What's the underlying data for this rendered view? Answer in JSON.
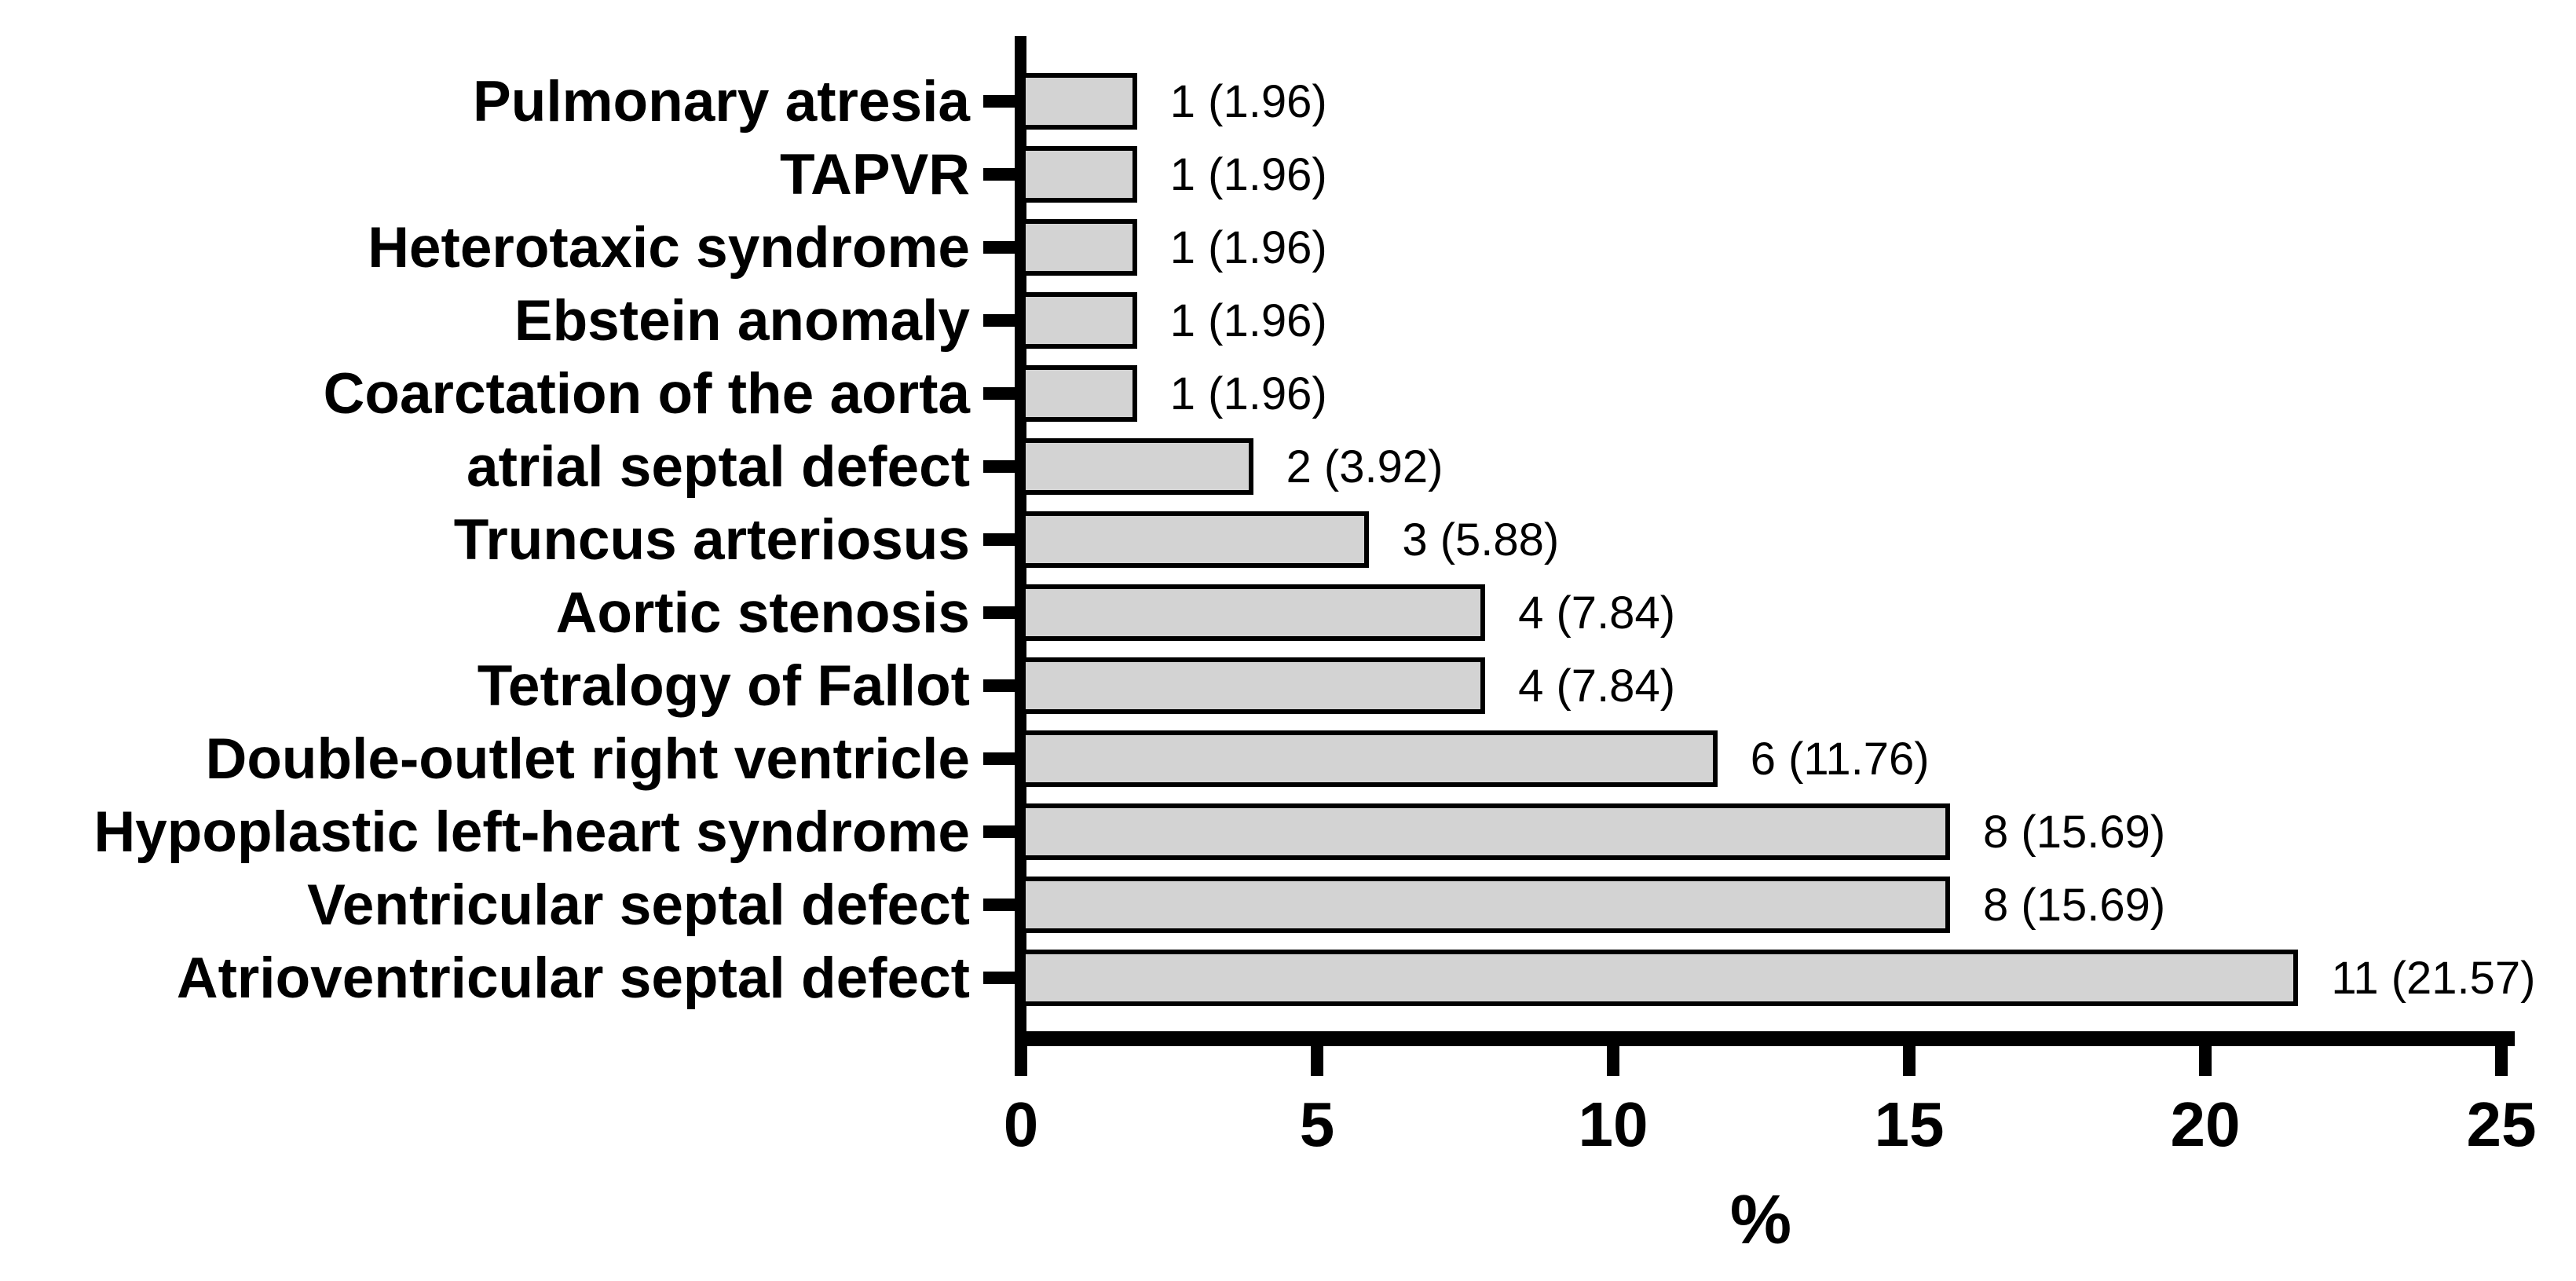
{
  "chart_data": {
    "type": "bar",
    "orientation": "horizontal",
    "title": "",
    "xlabel": "%",
    "ylabel": "",
    "xlim": [
      0,
      25
    ],
    "x_ticks": [
      0,
      5,
      10,
      15,
      20,
      25
    ],
    "grid": false,
    "legend": "none",
    "categories": [
      "Pulmonary atresia",
      "TAPVR",
      "Heterotaxic syndrome",
      "Ebstein anomaly",
      "Coarctation of the aorta",
      "atrial septal defect",
      "Truncus arteriosus",
      "Aortic stenosis",
      "Tetralogy of Fallot",
      "Double-outlet right ventricle",
      "Hypoplastic left-heart syndrome",
      "Ventricular septal defect",
      "Atrioventricular septal defect"
    ],
    "counts": [
      1,
      1,
      1,
      1,
      1,
      2,
      3,
      4,
      4,
      6,
      8,
      8,
      11
    ],
    "values": [
      1.96,
      1.96,
      1.96,
      1.96,
      1.96,
      3.92,
      5.88,
      7.84,
      7.84,
      11.76,
      15.69,
      15.69,
      21.57
    ],
    "bar_labels": [
      "1 (1.96)",
      "1 (1.96)",
      "1 (1.96)",
      "1 (1.96)",
      "1 (1.96)",
      "2 (3.92)",
      "3 (5.88)",
      "4 (7.84)",
      "4 (7.84)",
      "6 (11.76)",
      "8 (15.69)",
      "8 (15.69)",
      "11 (21.57)"
    ],
    "colors": {
      "bar_fill": "#d3d3d3",
      "bar_border": "#000000",
      "axis": "#000000",
      "text": "#000000",
      "background": "#ffffff"
    }
  }
}
